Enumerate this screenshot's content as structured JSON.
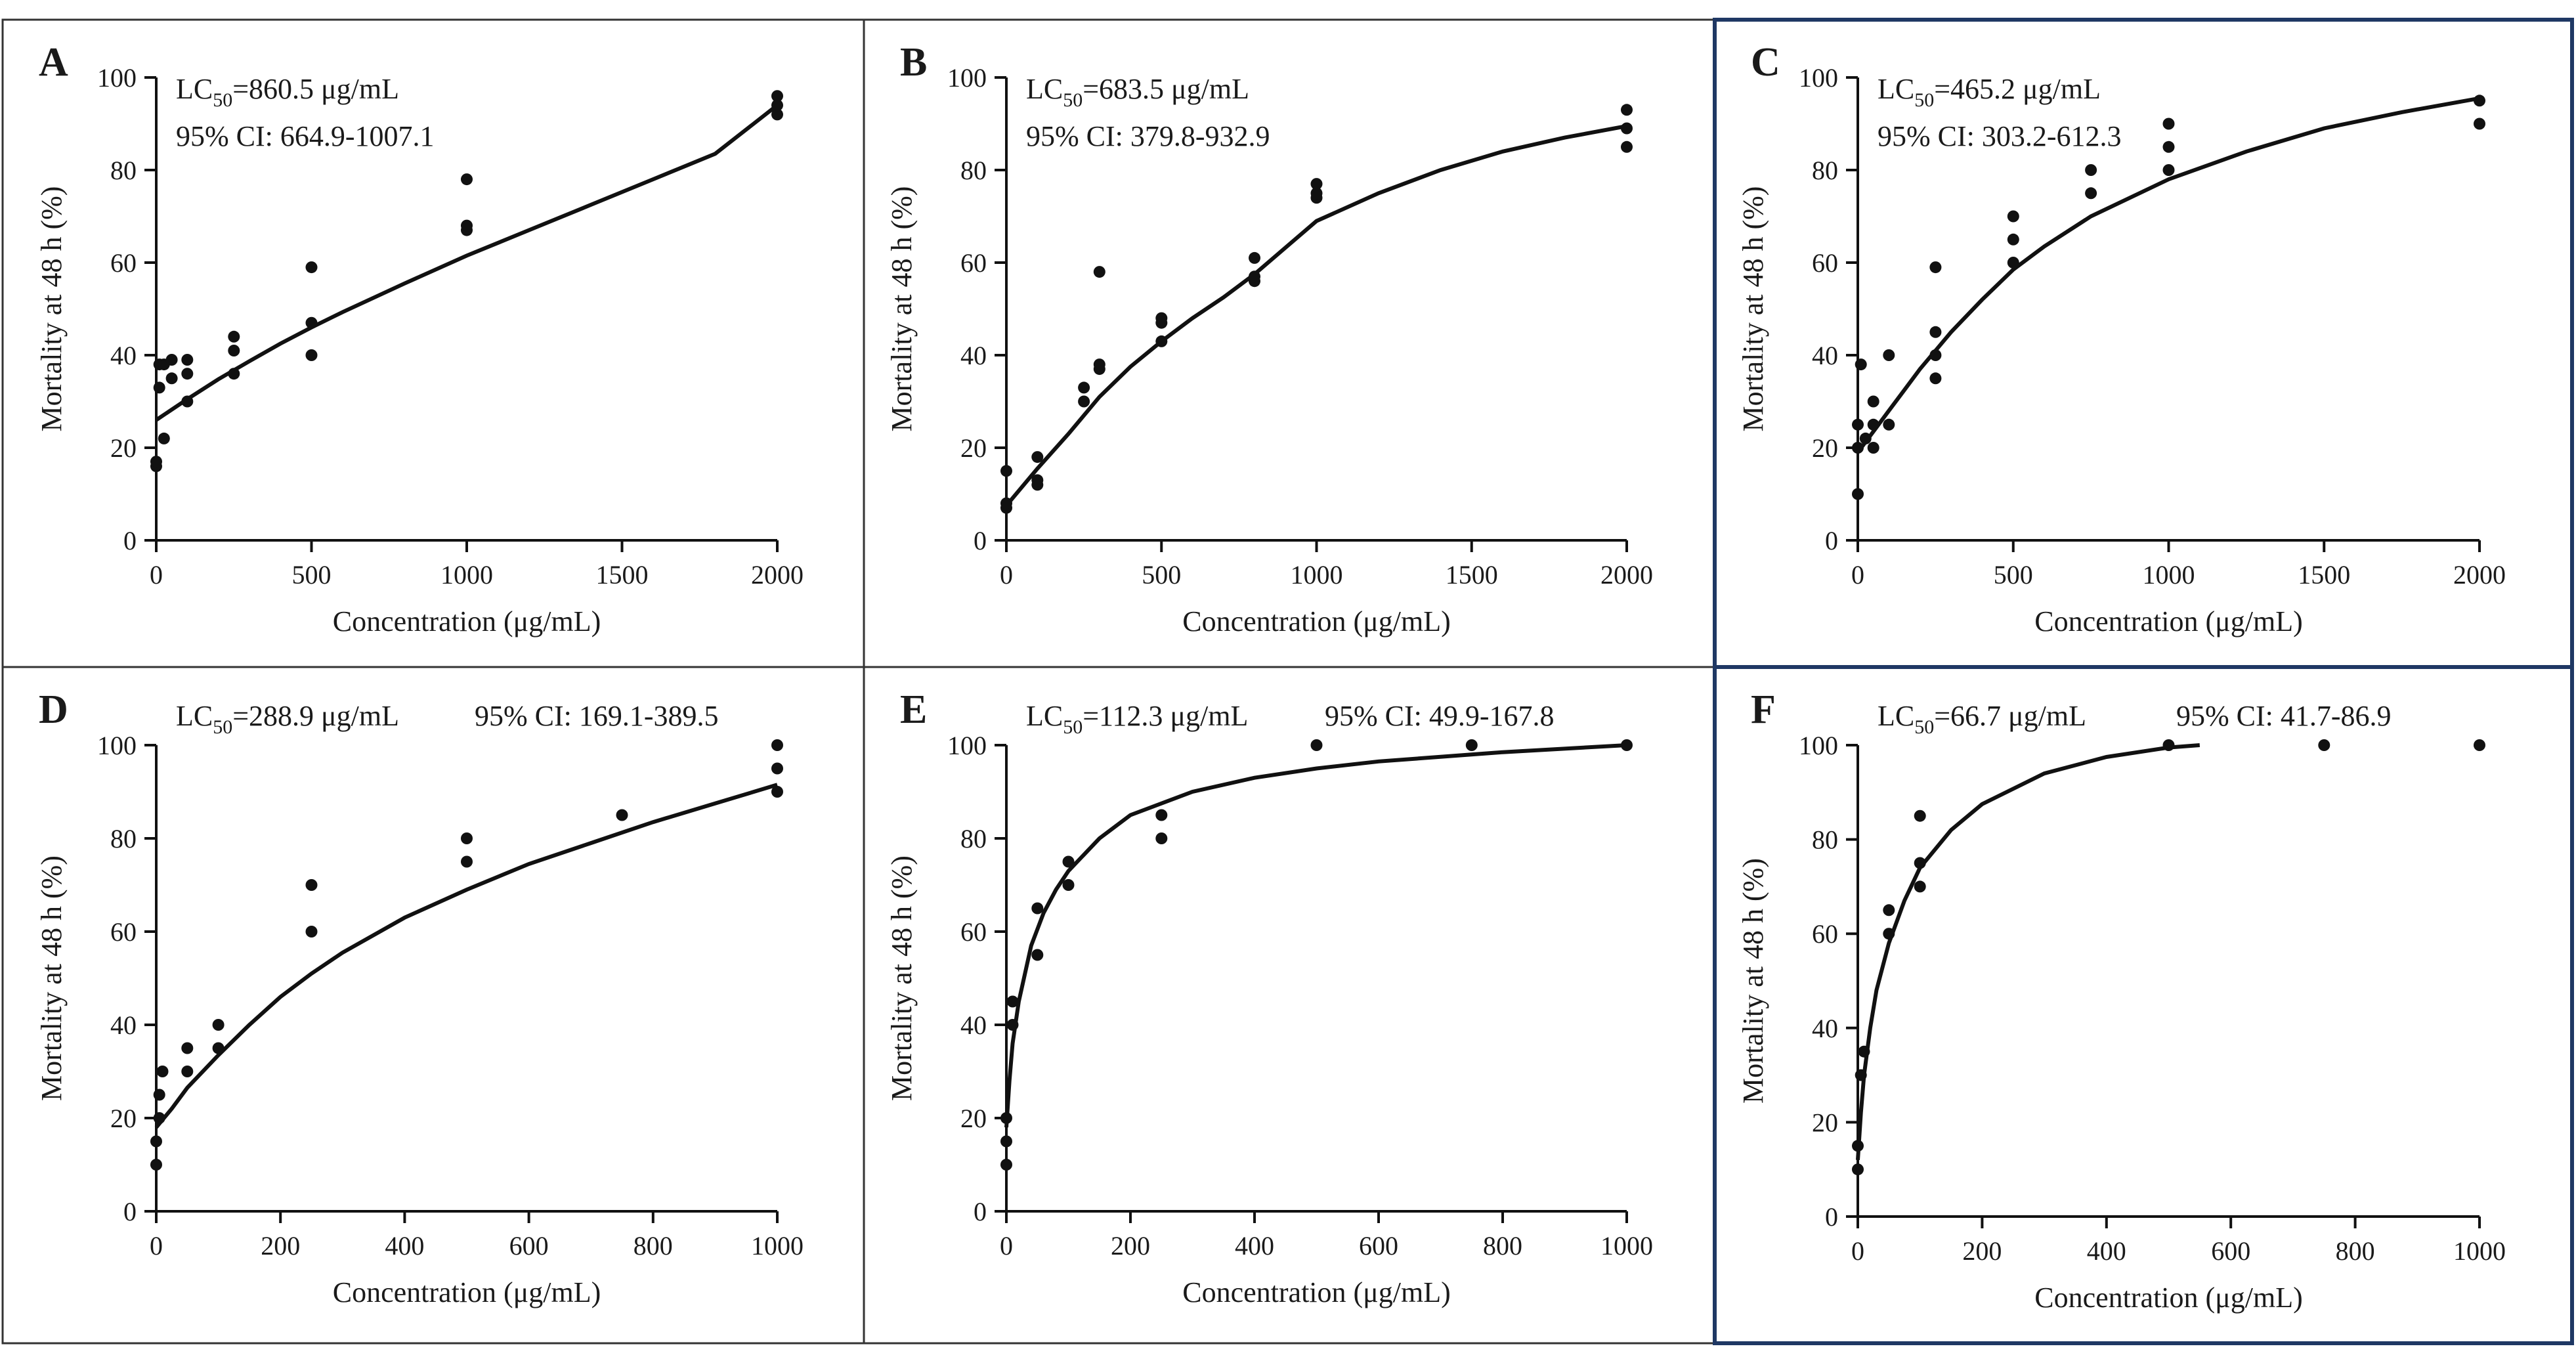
{
  "figure": {
    "panel_count": 6
  },
  "chart_data": [
    {
      "type": "scatter",
      "panel_label": "A",
      "title": "",
      "xlabel": "Concentration (μg/mL)",
      "ylabel": "Mortality at 48 h (%)",
      "xlim": [
        0,
        2000
      ],
      "ylim": [
        0,
        100
      ],
      "xticks": [
        0,
        500,
        1000,
        1500,
        2000
      ],
      "yticks": [
        0,
        20,
        40,
        60,
        80,
        100
      ],
      "lc50_prefix": "LC",
      "lc50_sub": "50",
      "lc50_value": "=860.5 μg/mL",
      "ci": "95% CI: 664.9-1007.1",
      "annotation_layout": "stacked",
      "points": [
        [
          0,
          16
        ],
        [
          0,
          17
        ],
        [
          10,
          33
        ],
        [
          10,
          38
        ],
        [
          25,
          22
        ],
        [
          25,
          38
        ],
        [
          50,
          35
        ],
        [
          50,
          39
        ],
        [
          100,
          30
        ],
        [
          100,
          36
        ],
        [
          100,
          39
        ],
        [
          250,
          36
        ],
        [
          250,
          41
        ],
        [
          250,
          44
        ],
        [
          500,
          40
        ],
        [
          500,
          47
        ],
        [
          500,
          59
        ],
        [
          1000,
          67
        ],
        [
          1000,
          68
        ],
        [
          1000,
          78
        ],
        [
          2000,
          92
        ],
        [
          2000,
          94
        ],
        [
          2000,
          96
        ]
      ],
      "fit": [
        [
          0,
          26
        ],
        [
          100,
          30.5
        ],
        [
          200,
          34.8
        ],
        [
          300,
          38.7
        ],
        [
          400,
          42.5
        ],
        [
          500,
          46
        ],
        [
          600,
          49.3
        ],
        [
          800,
          55.5
        ],
        [
          1000,
          61.5
        ],
        [
          1200,
          67
        ],
        [
          1400,
          72.5
        ],
        [
          1600,
          78
        ],
        [
          1800,
          83.5
        ],
        [
          2000,
          94
        ]
      ]
    },
    {
      "type": "scatter",
      "panel_label": "B",
      "title": "",
      "xlabel": "Concentration (μg/mL)",
      "ylabel": "Mortality at 48 h (%)",
      "xlim": [
        0,
        2000
      ],
      "ylim": [
        0,
        100
      ],
      "xticks": [
        0,
        500,
        1000,
        1500,
        2000
      ],
      "yticks": [
        0,
        20,
        40,
        60,
        80,
        100
      ],
      "lc50_prefix": "LC",
      "lc50_sub": "50",
      "lc50_value": "=683.5 μg/mL",
      "ci": "95% CI: 379.8-932.9",
      "annotation_layout": "stacked",
      "points": [
        [
          0,
          7
        ],
        [
          0,
          8
        ],
        [
          0,
          15
        ],
        [
          100,
          12
        ],
        [
          100,
          13
        ],
        [
          100,
          18
        ],
        [
          250,
          30
        ],
        [
          250,
          33
        ],
        [
          300,
          37
        ],
        [
          300,
          38
        ],
        [
          300,
          58
        ],
        [
          500,
          43
        ],
        [
          500,
          47
        ],
        [
          500,
          48
        ],
        [
          800,
          56
        ],
        [
          800,
          57
        ],
        [
          800,
          61
        ],
        [
          1000,
          74
        ],
        [
          1000,
          75
        ],
        [
          1000,
          77
        ],
        [
          2000,
          85
        ],
        [
          2000,
          89
        ],
        [
          2000,
          93
        ]
      ],
      "fit": [
        [
          0,
          7.5
        ],
        [
          50,
          11.5
        ],
        [
          100,
          15.5
        ],
        [
          200,
          23
        ],
        [
          300,
          31
        ],
        [
          400,
          37.5
        ],
        [
          500,
          43
        ],
        [
          600,
          48
        ],
        [
          700,
          52.5
        ],
        [
          800,
          57.5
        ],
        [
          1000,
          69
        ],
        [
          1200,
          75
        ],
        [
          1400,
          80
        ],
        [
          1600,
          84
        ],
        [
          1800,
          87
        ],
        [
          2000,
          89.5
        ]
      ]
    },
    {
      "type": "scatter",
      "panel_label": "C",
      "title": "",
      "xlabel": "Concentration (μg/mL)",
      "ylabel": "Mortality at 48 h (%)",
      "xlim": [
        0,
        2000
      ],
      "ylim": [
        0,
        100
      ],
      "xticks": [
        0,
        500,
        1000,
        1500,
        2000
      ],
      "yticks": [
        0,
        20,
        40,
        60,
        80,
        100
      ],
      "lc50_prefix": "LC",
      "lc50_sub": "50",
      "lc50_value": "=465.2 μg/mL",
      "ci": "95% CI: 303.2-612.3",
      "annotation_layout": "stacked",
      "points": [
        [
          0,
          10
        ],
        [
          0,
          20
        ],
        [
          0,
          25
        ],
        [
          10,
          38
        ],
        [
          25,
          22
        ],
        [
          50,
          20
        ],
        [
          50,
          25
        ],
        [
          50,
          30
        ],
        [
          100,
          25
        ],
        [
          100,
          40
        ],
        [
          250,
          35
        ],
        [
          250,
          40
        ],
        [
          250,
          45
        ],
        [
          250,
          59
        ],
        [
          500,
          60
        ],
        [
          500,
          65
        ],
        [
          500,
          70
        ],
        [
          750,
          75
        ],
        [
          750,
          80
        ],
        [
          1000,
          80
        ],
        [
          1000,
          85
        ],
        [
          1000,
          90
        ],
        [
          2000,
          90
        ],
        [
          2000,
          95
        ]
      ],
      "fit": [
        [
          0,
          19
        ],
        [
          50,
          23.5
        ],
        [
          100,
          28
        ],
        [
          150,
          32.5
        ],
        [
          200,
          37
        ],
        [
          250,
          41
        ],
        [
          300,
          45
        ],
        [
          400,
          52
        ],
        [
          500,
          58.5
        ],
        [
          600,
          63.5
        ],
        [
          750,
          70
        ],
        [
          1000,
          78
        ],
        [
          1250,
          84
        ],
        [
          1500,
          89
        ],
        [
          1750,
          92.5
        ],
        [
          2000,
          95.5
        ]
      ]
    },
    {
      "type": "scatter",
      "panel_label": "D",
      "title": "",
      "xlabel": "Concentration (μg/mL)",
      "ylabel": "Mortality at 48 h (%)",
      "xlim": [
        0,
        1000
      ],
      "ylim": [
        0,
        100
      ],
      "xticks": [
        0,
        200,
        400,
        600,
        800,
        1000
      ],
      "yticks": [
        0,
        20,
        40,
        60,
        80,
        100
      ],
      "lc50_prefix": "LC",
      "lc50_sub": "50",
      "lc50_value": "=288.9 μg/mL",
      "ci": "95% CI: 169.1-389.5",
      "annotation_layout": "inline",
      "points": [
        [
          0,
          10
        ],
        [
          0,
          15
        ],
        [
          5,
          20
        ],
        [
          5,
          25
        ],
        [
          10,
          30
        ],
        [
          50,
          30
        ],
        [
          50,
          35
        ],
        [
          100,
          35
        ],
        [
          100,
          40
        ],
        [
          250,
          60
        ],
        [
          250,
          70
        ],
        [
          500,
          75
        ],
        [
          500,
          80
        ],
        [
          750,
          85
        ],
        [
          1000,
          90
        ],
        [
          1000,
          95
        ],
        [
          1000,
          100
        ]
      ],
      "fit": [
        [
          0,
          18
        ],
        [
          25,
          22
        ],
        [
          50,
          26.5
        ],
        [
          100,
          33.5
        ],
        [
          150,
          40
        ],
        [
          200,
          46
        ],
        [
          250,
          51
        ],
        [
          300,
          55.5
        ],
        [
          400,
          63
        ],
        [
          500,
          69
        ],
        [
          600,
          74.5
        ],
        [
          700,
          79
        ],
        [
          800,
          83.5
        ],
        [
          900,
          87.5
        ],
        [
          1000,
          91.5
        ]
      ]
    },
    {
      "type": "scatter",
      "panel_label": "E",
      "title": "",
      "xlabel": "Concentration (μg/mL)",
      "ylabel": "Mortality at 48 h (%)",
      "xlim": [
        0,
        1000
      ],
      "ylim": [
        0,
        100
      ],
      "xticks": [
        0,
        200,
        400,
        600,
        800,
        1000
      ],
      "yticks": [
        0,
        20,
        40,
        60,
        80,
        100
      ],
      "lc50_prefix": "LC",
      "lc50_sub": "50",
      "lc50_value": "=112.3 μg/mL",
      "ci": "95% CI: 49.9-167.8",
      "annotation_layout": "inline",
      "points": [
        [
          0,
          10
        ],
        [
          0,
          15
        ],
        [
          0,
          20
        ],
        [
          10,
          40
        ],
        [
          10,
          45
        ],
        [
          50,
          55
        ],
        [
          50,
          65
        ],
        [
          100,
          70
        ],
        [
          100,
          75
        ],
        [
          250,
          80
        ],
        [
          250,
          85
        ],
        [
          500,
          100
        ],
        [
          750,
          100
        ],
        [
          1000,
          100
        ]
      ],
      "fit": [
        [
          0,
          18
        ],
        [
          5,
          28
        ],
        [
          10,
          36
        ],
        [
          20,
          45
        ],
        [
          40,
          57
        ],
        [
          60,
          64
        ],
        [
          80,
          69
        ],
        [
          100,
          73
        ],
        [
          150,
          80
        ],
        [
          200,
          85
        ],
        [
          300,
          90
        ],
        [
          400,
          93
        ],
        [
          500,
          95
        ],
        [
          600,
          96.5
        ],
        [
          800,
          98.5
        ],
        [
          1000,
          100
        ]
      ]
    },
    {
      "type": "scatter",
      "panel_label": "F",
      "title": "",
      "xlabel": "Concentration (μg/mL)",
      "ylabel": "Mortality at 48 h (%)",
      "xlim": [
        0,
        1000
      ],
      "ylim": [
        0,
        100
      ],
      "xticks": [
        0,
        200,
        400,
        600,
        800,
        1000
      ],
      "yticks": [
        0,
        20,
        40,
        60,
        80,
        100
      ],
      "lc50_prefix": "LC",
      "lc50_sub": "50",
      "lc50_value": "=66.7 μg/mL",
      "ci": "95% CI: 41.7-86.9",
      "annotation_layout": "inline",
      "points": [
        [
          0,
          10
        ],
        [
          0,
          15
        ],
        [
          5,
          30
        ],
        [
          10,
          35
        ],
        [
          50,
          60
        ],
        [
          50,
          65
        ],
        [
          100,
          70
        ],
        [
          100,
          75
        ],
        [
          100,
          85
        ],
        [
          500,
          100
        ],
        [
          750,
          100
        ],
        [
          1000,
          100
        ]
      ],
      "fit": [
        [
          0,
          12
        ],
        [
          5,
          22
        ],
        [
          10,
          30
        ],
        [
          20,
          40
        ],
        [
          30,
          48
        ],
        [
          50,
          58
        ],
        [
          75,
          67
        ],
        [
          100,
          74
        ],
        [
          150,
          82
        ],
        [
          200,
          87.5
        ],
        [
          300,
          94
        ],
        [
          400,
          97.5
        ],
        [
          500,
          99.5
        ],
        [
          550,
          100
        ]
      ]
    }
  ]
}
